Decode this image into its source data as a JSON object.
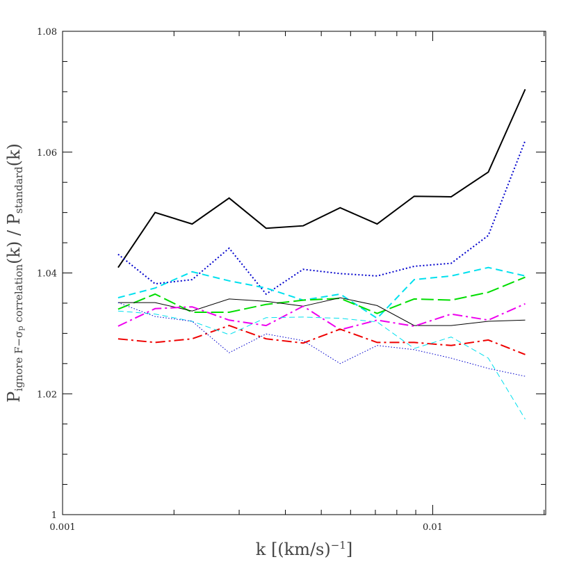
{
  "chart_data": {
    "type": "line",
    "xscale": "log",
    "xlim": [
      0.001,
      0.0202
    ],
    "ylim": [
      1,
      1.08
    ],
    "xticks": [
      0.001,
      0.01
    ],
    "xminor": [
      0.002,
      0.003,
      0.004,
      0.005,
      0.006,
      0.007,
      0.008,
      0.009,
      0.02
    ],
    "yticks": [
      1,
      1.02,
      1.04,
      1.06,
      1.08
    ],
    "yminor": [
      1.005,
      1.01,
      1.015,
      1.025,
      1.03,
      1.035,
      1.045,
      1.05,
      1.055,
      1.065,
      1.07,
      1.075
    ],
    "xlabel_parts": [
      {
        "text": "k  [(km/s)"
      },
      {
        "text": "−1",
        "sup": true
      },
      {
        "text": "]"
      }
    ],
    "ylabel_parts": [
      {
        "text": "P"
      },
      {
        "text": "ignore F−σ",
        "sub": true
      },
      {
        "text": "p",
        "subsub": true
      },
      {
        "text": " correlation",
        "sub": true
      },
      {
        "text": "(k)  /  P"
      },
      {
        "text": "standard",
        "sub": true
      },
      {
        "text": "(k)"
      }
    ],
    "x": [
      0.001413,
      0.001778,
      0.002239,
      0.002818,
      0.003548,
      0.004467,
      0.005623,
      0.007079,
      0.008913,
      0.01122,
      0.01413,
      0.01778
    ],
    "series": [
      {
        "color": "#000000",
        "width": 2,
        "dash": "solid",
        "values": [
          1.0409,
          1.05,
          1.0481,
          1.0524,
          1.0474,
          1.0478,
          1.0508,
          1.0481,
          1.0527,
          1.0526,
          1.0567,
          1.0704
        ]
      },
      {
        "color": "#0000cc",
        "width": 2,
        "dash": "dotted",
        "values": [
          1.0431,
          1.0382,
          1.0389,
          1.0441,
          1.0365,
          1.0406,
          1.0399,
          1.0395,
          1.0411,
          1.0416,
          1.0462,
          1.0619
        ]
      },
      {
        "color": "#00e0ee",
        "width": 2,
        "dash": "dashed",
        "values": [
          1.0359,
          1.0375,
          1.0402,
          1.0387,
          1.0375,
          1.0355,
          1.0365,
          1.0325,
          1.0389,
          1.0395,
          1.0409,
          1.0395
        ]
      },
      {
        "color": "#00dd00",
        "width": 2,
        "dash": "longdash",
        "values": [
          1.034,
          1.0365,
          1.0335,
          1.0335,
          1.0348,
          1.0355,
          1.0358,
          1.0333,
          1.0357,
          1.0355,
          1.0368,
          1.0393
        ]
      },
      {
        "color": "#000000",
        "width": 1,
        "dash": "solid",
        "values": [
          1.0351,
          1.0351,
          1.0337,
          1.0357,
          1.0353,
          1.0345,
          1.0359,
          1.0346,
          1.0313,
          1.0313,
          1.032,
          1.0322
        ]
      },
      {
        "color": "#ee00ee",
        "width": 2,
        "dash": "dashdot",
        "values": [
          1.0312,
          1.0341,
          1.0344,
          1.0322,
          1.0313,
          1.0345,
          1.0306,
          1.0322,
          1.0312,
          1.0332,
          1.0322,
          1.0349
        ]
      },
      {
        "color": "#ee0000",
        "width": 2,
        "dash": "dashdot",
        "values": [
          1.0291,
          1.0285,
          1.0291,
          1.0313,
          1.0291,
          1.0284,
          1.0307,
          1.0285,
          1.0285,
          1.028,
          1.0289,
          1.0265
        ]
      },
      {
        "color": "#00e0ee",
        "width": 1,
        "dash": "dashed",
        "values": [
          1.0337,
          1.0332,
          1.032,
          1.0298,
          1.0326,
          1.0327,
          1.0325,
          1.0319,
          1.0275,
          1.0294,
          1.0259,
          1.0158
        ]
      },
      {
        "color": "#0000cc",
        "width": 1,
        "dash": "dotted",
        "values": [
          1.0351,
          1.0328,
          1.032,
          1.0268,
          1.0299,
          1.0288,
          1.025,
          1.028,
          1.0273,
          1.0259,
          1.0242,
          1.0229
        ]
      }
    ]
  }
}
